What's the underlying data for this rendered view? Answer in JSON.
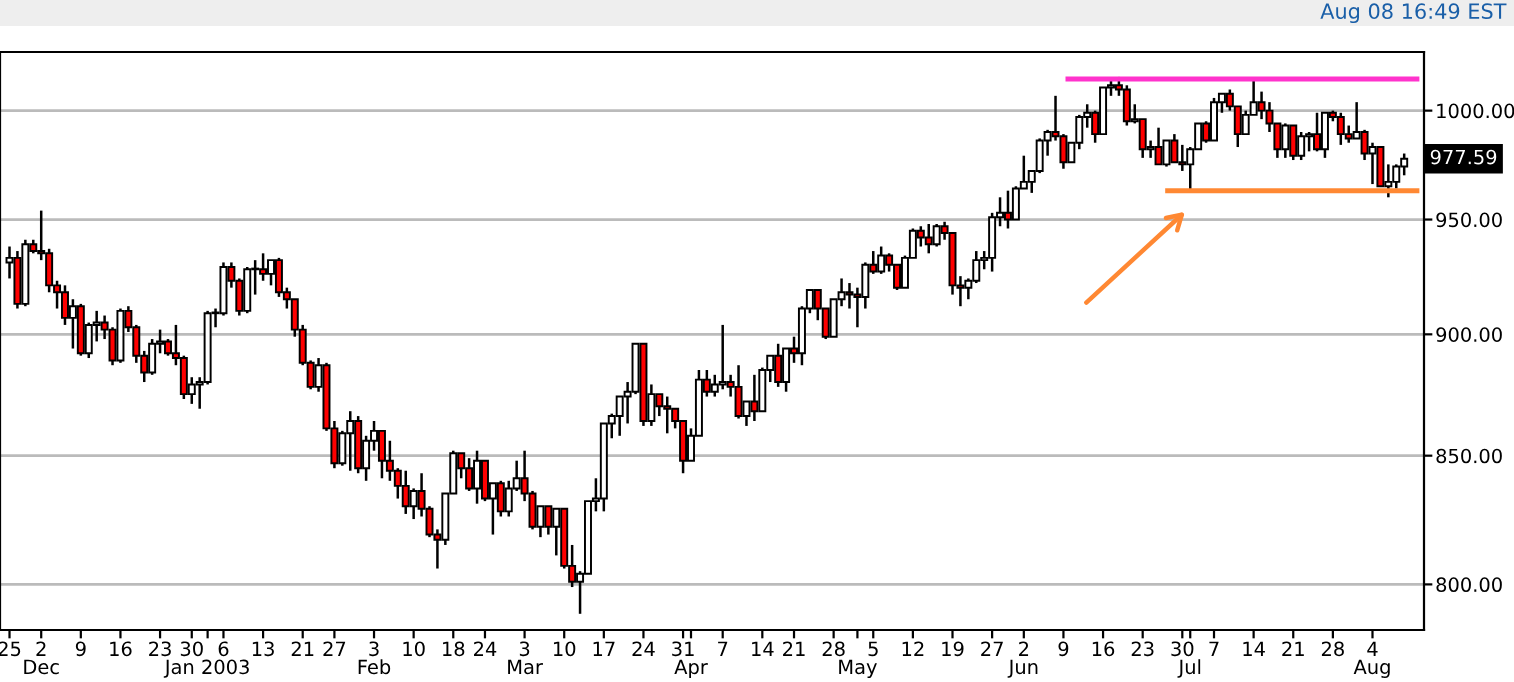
{
  "chart_data": {
    "type": "candlestick",
    "categories": [
      "25",
      null,
      null,
      null,
      "2\nDec",
      null,
      null,
      null,
      null,
      "9",
      null,
      null,
      null,
      null,
      "16",
      null,
      null,
      null,
      null,
      "23",
      null,
      null,
      null,
      "30",
      null,
      "\nJan 2003",
      null,
      "6",
      null,
      null,
      null,
      null,
      "13",
      null,
      null,
      null,
      null,
      "21",
      null,
      null,
      null,
      "27",
      null,
      null,
      null,
      null,
      "3\nFeb",
      null,
      null,
      null,
      null,
      "10",
      null,
      null,
      null,
      null,
      "18",
      null,
      null,
      null,
      "24",
      null,
      null,
      null,
      null,
      "3\nMar",
      null,
      null,
      null,
      null,
      "10",
      null,
      null,
      null,
      null,
      "17",
      null,
      null,
      null,
      null,
      "24",
      null,
      null,
      null,
      null,
      "31",
      "\nApr",
      null,
      null,
      null,
      "7",
      null,
      null,
      null,
      null,
      "14",
      null,
      null,
      null,
      "21",
      null,
      null,
      null,
      null,
      "28",
      null,
      null,
      "\nMay",
      null,
      "5",
      null,
      null,
      null,
      null,
      "12",
      null,
      null,
      null,
      null,
      "19",
      null,
      null,
      null,
      null,
      "27",
      null,
      null,
      null,
      "2\nJun",
      null,
      null,
      null,
      null,
      "9",
      null,
      null,
      null,
      null,
      "16",
      null,
      null,
      null,
      null,
      "23",
      null,
      null,
      null,
      null,
      "30",
      "\nJul",
      null,
      null,
      "7",
      null,
      null,
      null,
      null,
      "14",
      null,
      null,
      null,
      null,
      "21",
      null,
      null,
      null,
      null,
      "28",
      null,
      null,
      null,
      null,
      "4\nAug",
      null,
      null,
      null,
      null
    ],
    "ohlc": [
      [
        931,
        938,
        924,
        933
      ],
      [
        933,
        936,
        911,
        913
      ],
      [
        913,
        941,
        912,
        939
      ],
      [
        939,
        941,
        935,
        936
      ],
      [
        936,
        954,
        932,
        935
      ],
      [
        935,
        937,
        918,
        921
      ],
      [
        921,
        923,
        911,
        918
      ],
      [
        918,
        921,
        904,
        907
      ],
      [
        907,
        915,
        894,
        912
      ],
      [
        912,
        913,
        891,
        892
      ],
      [
        892,
        905,
        890,
        904
      ],
      [
        904,
        910,
        897,
        905
      ],
      [
        905,
        908,
        898,
        902
      ],
      [
        902,
        903,
        887,
        889
      ],
      [
        889,
        911,
        888,
        910
      ],
      [
        910,
        912,
        901,
        903
      ],
      [
        903,
        904,
        888,
        891
      ],
      [
        891,
        893,
        880,
        884
      ],
      [
        884,
        898,
        883,
        896
      ],
      [
        896,
        902,
        892,
        897
      ],
      [
        897,
        898,
        891,
        892
      ],
      [
        892,
        904,
        887,
        890
      ],
      [
        890,
        891,
        873,
        875
      ],
      [
        875,
        882,
        871,
        879
      ],
      [
        879,
        882,
        869,
        880
      ],
      [
        880,
        910,
        879,
        909
      ],
      [
        909,
        911,
        903,
        909
      ],
      [
        909,
        931,
        908,
        929
      ],
      [
        929,
        931,
        920,
        923
      ],
      [
        923,
        924,
        908,
        910
      ],
      [
        910,
        929,
        909,
        928
      ],
      [
        928,
        932,
        917,
        928
      ],
      [
        928,
        935,
        923,
        926
      ],
      [
        926,
        932,
        921,
        932
      ],
      [
        932,
        933,
        916,
        918
      ],
      [
        918,
        920,
        911,
        915
      ],
      [
        915,
        915,
        899,
        902
      ],
      [
        902,
        904,
        887,
        888
      ],
      [
        888,
        889,
        877,
        878
      ],
      [
        878,
        890,
        876,
        887
      ],
      [
        887,
        888,
        860,
        861
      ],
      [
        861,
        864,
        845,
        847
      ],
      [
        847,
        860,
        846,
        859
      ],
      [
        859,
        868,
        844,
        864
      ],
      [
        864,
        866,
        843,
        845
      ],
      [
        845,
        858,
        840,
        856
      ],
      [
        856,
        864,
        852,
        860
      ],
      [
        860,
        860,
        841,
        848
      ],
      [
        848,
        856,
        840,
        844
      ],
      [
        844,
        845,
        833,
        838
      ],
      [
        838,
        844,
        827,
        830
      ],
      [
        830,
        837,
        825,
        836
      ],
      [
        836,
        843,
        826,
        829
      ],
      [
        829,
        830,
        818,
        819
      ],
      [
        819,
        821,
        806,
        817
      ],
      [
        817,
        835,
        815,
        835
      ],
      [
        835,
        852,
        835,
        851
      ],
      [
        851,
        851,
        841,
        845
      ],
      [
        845,
        849,
        836,
        837
      ],
      [
        837,
        852,
        831,
        848
      ],
      [
        848,
        848,
        832,
        833
      ],
      [
        833,
        839,
        819,
        839
      ],
      [
        839,
        840,
        826,
        828
      ],
      [
        828,
        840,
        826,
        837
      ],
      [
        837,
        848,
        836,
        841
      ],
      [
        841,
        852,
        832,
        835
      ],
      [
        835,
        836,
        821,
        822
      ],
      [
        822,
        830,
        818,
        830
      ],
      [
        830,
        830,
        819,
        822
      ],
      [
        822,
        829,
        811,
        829
      ],
      [
        829,
        829,
        806,
        807
      ],
      [
        807,
        815,
        799,
        801
      ],
      [
        801,
        805,
        789,
        804
      ],
      [
        804,
        832,
        804,
        832
      ],
      [
        832,
        841,
        828,
        833
      ],
      [
        833,
        863,
        828,
        863
      ],
      [
        863,
        867,
        857,
        866
      ],
      [
        866,
        874,
        858,
        874
      ],
      [
        874,
        880,
        863,
        876
      ],
      [
        876,
        896,
        875,
        896
      ],
      [
        896,
        896,
        862,
        864
      ],
      [
        864,
        879,
        862,
        875
      ],
      [
        875,
        875,
        866,
        870
      ],
      [
        870,
        874,
        859,
        869
      ],
      [
        869,
        869,
        861,
        864
      ],
      [
        864,
        864,
        843,
        848
      ],
      [
        848,
        861,
        848,
        858
      ],
      [
        858,
        885,
        858,
        881
      ],
      [
        881,
        885,
        874,
        876
      ],
      [
        876,
        883,
        874,
        879
      ],
      [
        879,
        904,
        877,
        880
      ],
      [
        880,
        883,
        874,
        878
      ],
      [
        878,
        887,
        865,
        866
      ],
      [
        866,
        872,
        862,
        872
      ],
      [
        872,
        883,
        864,
        868
      ],
      [
        868,
        886,
        868,
        885
      ],
      [
        885,
        891,
        880,
        891
      ],
      [
        891,
        896,
        878,
        880
      ],
      [
        880,
        894,
        876,
        894
      ],
      [
        894,
        899,
        888,
        892
      ],
      [
        892,
        912,
        887,
        911
      ],
      [
        911,
        919,
        909,
        919
      ],
      [
        919,
        919,
        906,
        911
      ],
      [
        911,
        911,
        898,
        899
      ],
      [
        899,
        915,
        899,
        915
      ],
      [
        915,
        924,
        912,
        918
      ],
      [
        918,
        922,
        911,
        917
      ],
      [
        917,
        920,
        903,
        916
      ],
      [
        916,
        931,
        911,
        930
      ],
      [
        930,
        936,
        926,
        927
      ],
      [
        927,
        938,
        926,
        934
      ],
      [
        934,
        935,
        927,
        930
      ],
      [
        930,
        930,
        919,
        920
      ],
      [
        920,
        934,
        920,
        933
      ],
      [
        933,
        946,
        933,
        945
      ],
      [
        945,
        947,
        938,
        942
      ],
      [
        942,
        948,
        935,
        939
      ],
      [
        939,
        948,
        938,
        947
      ],
      [
        947,
        949,
        941,
        944
      ],
      [
        944,
        944,
        917,
        921
      ],
      [
        921,
        925,
        912,
        920
      ],
      [
        920,
        924,
        915,
        923
      ],
      [
        923,
        936,
        922,
        932
      ],
      [
        932,
        936,
        928,
        933
      ],
      [
        933,
        953,
        927,
        951
      ],
      [
        951,
        960,
        947,
        953
      ],
      [
        953,
        963,
        946,
        950
      ],
      [
        950,
        965,
        950,
        964
      ],
      [
        964,
        979,
        964,
        967
      ],
      [
        967,
        972,
        962,
        972
      ],
      [
        972,
        987,
        971,
        986
      ],
      [
        986,
        991,
        979,
        990
      ],
      [
        990,
        1007,
        986,
        988
      ],
      [
        988,
        989,
        973,
        976
      ],
      [
        976,
        985,
        976,
        985
      ],
      [
        985,
        998,
        982,
        997
      ],
      [
        997,
        1003,
        992,
        999
      ],
      [
        999,
        1000,
        985,
        989
      ],
      [
        989,
        1011,
        989,
        1011
      ],
      [
        1011,
        1015,
        1007,
        1012
      ],
      [
        1012,
        1016,
        1007,
        1010
      ],
      [
        1010,
        1012,
        993,
        995
      ],
      [
        995,
        1003,
        994,
        996
      ],
      [
        996,
        996,
        978,
        982
      ],
      [
        982,
        986,
        978,
        983
      ],
      [
        983,
        992,
        975,
        975
      ],
      [
        975,
        986,
        974,
        986
      ],
      [
        986,
        989,
        976,
        976
      ],
      [
        976,
        984,
        972,
        975
      ],
      [
        975,
        983,
        962,
        982
      ],
      [
        982,
        994,
        982,
        994
      ],
      [
        994,
        995,
        985,
        986
      ],
      [
        986,
        1006,
        986,
        1004
      ],
      [
        1004,
        1008,
        999,
        1008
      ],
      [
        1008,
        1010,
        1000,
        1002
      ],
      [
        1002,
        1002,
        983,
        989
      ],
      [
        989,
        1000,
        989,
        998
      ],
      [
        998,
        1015,
        998,
        1004
      ],
      [
        1004,
        1009,
        996,
        1000
      ],
      [
        1000,
        1004,
        990,
        994
      ],
      [
        994,
        994,
        978,
        982
      ],
      [
        982,
        994,
        978,
        993
      ],
      [
        993,
        993,
        977,
        979
      ],
      [
        979,
        990,
        977,
        988
      ],
      [
        988,
        990,
        981,
        989
      ],
      [
        989,
        999,
        981,
        982
      ],
      [
        982,
        999,
        978,
        999
      ],
      [
        999,
        1000,
        995,
        997
      ],
      [
        997,
        999,
        984,
        989
      ],
      [
        989,
        993,
        985,
        987
      ],
      [
        987,
        1004,
        987,
        990
      ],
      [
        990,
        991,
        977,
        980
      ],
      [
        980,
        985,
        966,
        983
      ],
      [
        983,
        983,
        965,
        965
      ],
      [
        965,
        975,
        960,
        967
      ],
      [
        967,
        975,
        964,
        974
      ],
      [
        974,
        980,
        970,
        977.59
      ]
    ],
    "colors": [
      "#ffffff",
      "#ff0000",
      "#ffffff",
      "#ff0000",
      "#ff0000",
      "#ff0000",
      "#ff0000",
      "#ff0000",
      "#ffffff",
      "#ff0000",
      "#ffffff",
      "#ffffff",
      "#ff0000",
      "#ff0000",
      "#ffffff",
      "#ff0000",
      "#ff0000",
      "#ff0000",
      "#ffffff",
      "#ffffff",
      "#ff0000",
      "#ff0000",
      "#ff0000",
      "#ffffff",
      "#ffffff",
      "#ffffff",
      "#ffffff",
      "#ffffff",
      "#ff0000",
      "#ff0000",
      "#ffffff",
      "#ffffff",
      "#ff0000",
      "#ffffff",
      "#ff0000",
      "#ff0000",
      "#ff0000",
      "#ff0000",
      "#ff0000",
      "#ffffff",
      "#ff0000",
      "#ff0000",
      "#ffffff",
      "#ffffff",
      "#ff0000",
      "#ffffff",
      "#ffffff",
      "#ff0000",
      "#ff0000",
      "#ff0000",
      "#ff0000",
      "#ffffff",
      "#ff0000",
      "#ff0000",
      "#ff0000",
      "#ffffff",
      "#ffffff",
      "#ff0000",
      "#ff0000",
      "#ffffff",
      "#ff0000",
      "#ffffff",
      "#ff0000",
      "#ffffff",
      "#ffffff",
      "#ff0000",
      "#ff0000",
      "#ffffff",
      "#ff0000",
      "#ffffff",
      "#ff0000",
      "#ff0000",
      "#ffffff",
      "#ffffff",
      "#ffffff",
      "#ffffff",
      "#ffffff",
      "#ffffff",
      "#ffffff",
      "#ffffff",
      "#ff0000",
      "#ffffff",
      "#ff0000",
      "#ff0000",
      "#ff0000",
      "#ff0000",
      "#ffffff",
      "#ffffff",
      "#ff0000",
      "#ffffff",
      "#ffffff",
      "#ff0000",
      "#ff0000",
      "#ffffff",
      "#ff0000",
      "#ffffff",
      "#ffffff",
      "#ff0000",
      "#ffffff",
      "#ff0000",
      "#ffffff",
      "#ffffff",
      "#ff0000",
      "#ff0000",
      "#ffffff",
      "#ffffff",
      "#ff0000",
      "#ff0000",
      "#ffffff",
      "#ff0000",
      "#ffffff",
      "#ff0000",
      "#ff0000",
      "#ffffff",
      "#ffffff",
      "#ff0000",
      "#ff0000",
      "#ffffff",
      "#ff0000",
      "#ff0000",
      "#ff0000",
      "#ffffff",
      "#ffffff",
      "#ffffff",
      "#ffffff",
      "#ffffff",
      "#ff0000",
      "#ffffff",
      "#ffffff",
      "#ffffff",
      "#ffffff",
      "#ffffff",
      "#ff0000",
      "#ff0000",
      "#ffffff",
      "#ffffff",
      "#ffffff",
      "#ff0000",
      "#ffffff",
      "#ffffff",
      "#ff0000",
      "#ff0000",
      "#ffffff",
      "#ff0000",
      "#ffffff",
      "#ff0000",
      "#ffffff",
      "#ff0000",
      "#ff0000",
      "#ffffff",
      "#ffffff",
      "#ff0000",
      "#ffffff",
      "#ffffff",
      "#ff0000",
      "#ff0000",
      "#ffffff",
      "#ffffff",
      "#ff0000",
      "#ff0000",
      "#ff0000",
      "#ffffff",
      "#ff0000",
      "#ffffff",
      "#ffffff",
      "#ff0000",
      "#ffffff",
      "#ff0000",
      "#ff0000",
      "#ff0000",
      "#ffffff",
      "#ff0000",
      "#ffffff",
      "#ff0000",
      "#ffffff",
      "#ffffff",
      "#ffffff"
    ],
    "log": true,
    "ylim": [
      783,
      1028
    ],
    "yticks": [
      {
        "value": 800,
        "label": "800.00"
      },
      {
        "value": 850,
        "label": "850.00"
      },
      {
        "value": 900,
        "label": "900.00"
      },
      {
        "value": 950,
        "label": "950.00"
      },
      {
        "value": 1000,
        "label": "1000.00"
      }
    ],
    "grid": "y",
    "ref_lines": [
      {
        "axis": "y",
        "value": 1015,
        "color": "#ff33cc"
      },
      {
        "axis": "y",
        "value": 963,
        "color": "#ff8833"
      }
    ],
    "annotations": [
      "Aug 08 16:49 EST",
      "977.59"
    ]
  }
}
